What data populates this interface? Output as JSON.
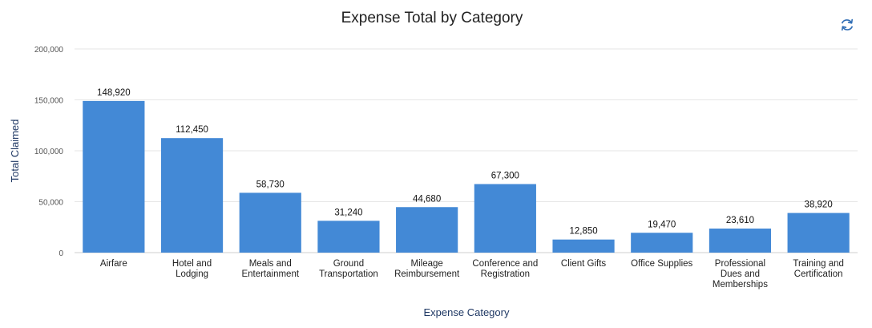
{
  "title": "Expense Total by Category",
  "icons": {
    "refresh": "refresh-icon"
  },
  "colors": {
    "bar": "#4389d6",
    "grid": "#e6e6e6",
    "axis_title": "#1f3864",
    "refresh_icon": "#2f6db5"
  },
  "chart_data": {
    "type": "bar",
    "title": "Expense Total by Category",
    "xlabel": "Expense Category",
    "ylabel": "Total Claimed",
    "ylim": [
      0,
      200000
    ],
    "yticks": [
      "0",
      "50,000",
      "100,000",
      "150,000",
      "200,000"
    ],
    "ytick_values": [
      0,
      50000,
      100000,
      150000,
      200000
    ],
    "grid": true,
    "categories": [
      [
        "Airfare"
      ],
      [
        "Hotel and",
        "Lodging"
      ],
      [
        "Meals and",
        "Entertainment"
      ],
      [
        "Ground",
        "Transportation"
      ],
      [
        "Mileage",
        "Reimbursement"
      ],
      [
        "Conference and",
        "Registration"
      ],
      [
        "Client Gifts"
      ],
      [
        "Office Supplies"
      ],
      [
        "Professional",
        "Dues and",
        "Memberships"
      ],
      [
        "Training and",
        "Certification"
      ]
    ],
    "values": [
      148920,
      112450,
      58730,
      31240,
      44680,
      67300,
      12850,
      19470,
      23610,
      38920
    ],
    "data_labels": [
      "148,920",
      "112,450",
      "58,730",
      "31,240",
      "44,680",
      "67,300",
      "12,850",
      "19,470",
      "23,610",
      "38,920"
    ]
  }
}
